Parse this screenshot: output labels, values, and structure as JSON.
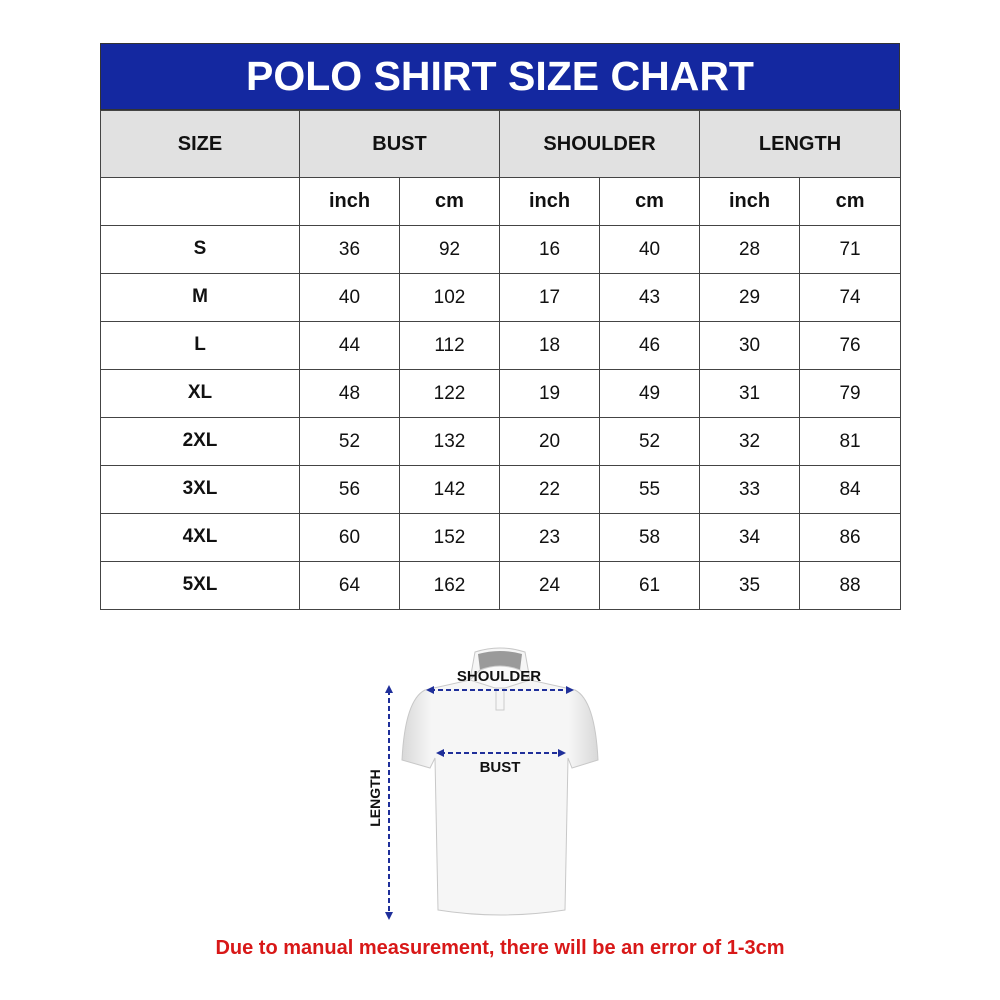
{
  "title": "POLO SHIRT SIZE CHART",
  "headers": [
    "SIZE",
    "BUST",
    "SHOULDER",
    "LENGTH"
  ],
  "units": [
    "inch",
    "cm",
    "inch",
    "cm",
    "inch",
    "cm"
  ],
  "rows": [
    {
      "size": "S",
      "values": [
        "36",
        "92",
        "16",
        "40",
        "28",
        "71"
      ]
    },
    {
      "size": "M",
      "values": [
        "40",
        "102",
        "17",
        "43",
        "29",
        "74"
      ]
    },
    {
      "size": "L",
      "values": [
        "44",
        "112",
        "18",
        "46",
        "30",
        "76"
      ]
    },
    {
      "size": "XL",
      "values": [
        "48",
        "122",
        "19",
        "49",
        "31",
        "79"
      ]
    },
    {
      "size": "2XL",
      "values": [
        "52",
        "132",
        "20",
        "52",
        "32",
        "81"
      ]
    },
    {
      "size": "3XL",
      "values": [
        "56",
        "142",
        "22",
        "55",
        "33",
        "84"
      ]
    },
    {
      "size": "4XL",
      "values": [
        "60",
        "152",
        "23",
        "58",
        "34",
        "86"
      ]
    },
    {
      "size": "5XL",
      "values": [
        "64",
        "162",
        "24",
        "61",
        "35",
        "88"
      ]
    }
  ],
  "diagram": {
    "shoulder": "SHOULDER",
    "bust": "BUST",
    "length": "LENGTH"
  },
  "note": "Due to manual measurement, there will be an error of 1-3cm",
  "colors": {
    "header_bg": "#1428a0",
    "subheader_bg": "#e1e1e1",
    "note": "#d81818",
    "measure_arrow": "#1f2f9a"
  }
}
